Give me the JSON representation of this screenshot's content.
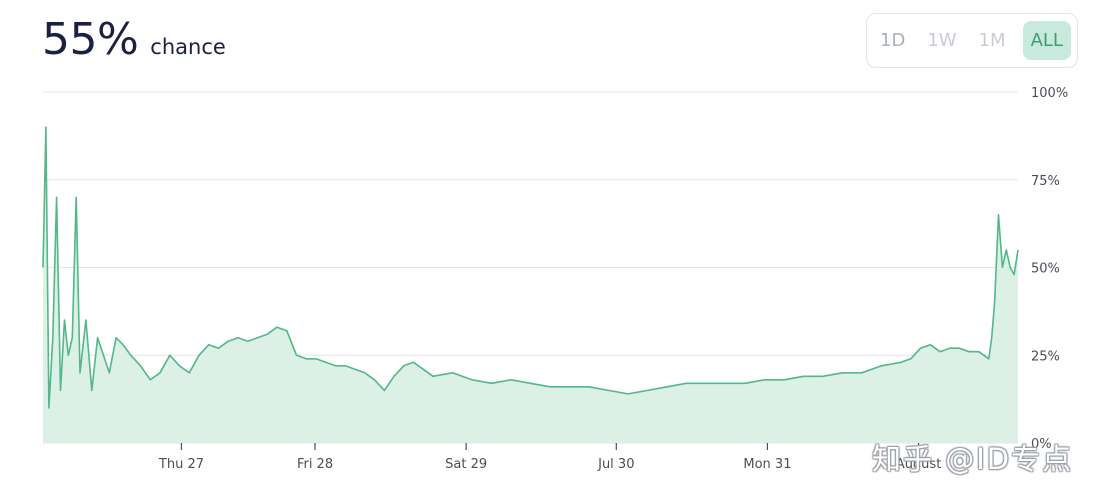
{
  "header": {
    "percent": "55%",
    "chance_label": "chance"
  },
  "range_buttons": [
    {
      "label": "1D",
      "active": false
    },
    {
      "label": "1W",
      "active": false
    },
    {
      "label": "1M",
      "active": false
    },
    {
      "label": "ALL",
      "active": true
    }
  ],
  "watermark": "知乎 @ID专点",
  "colors": {
    "line": "#52b888",
    "fill": "#dcf0e5",
    "accent": "#3f9b78",
    "active_bg": "#c8eadd",
    "grid": "#e3e6e9"
  },
  "chart_data": {
    "type": "area",
    "ylim": [
      0,
      100
    ],
    "y_ticks": [
      {
        "v": 100,
        "label": "100%"
      },
      {
        "v": 75,
        "label": "75%"
      },
      {
        "v": 50,
        "label": "50%"
      },
      {
        "v": 25,
        "label": "25%"
      },
      {
        "v": 0,
        "label": "0%"
      }
    ],
    "x_ticks": [
      {
        "t": 0.142,
        "label": "Thu 27"
      },
      {
        "t": 0.279,
        "label": "Fri 28"
      },
      {
        "t": 0.434,
        "label": "Sat 29"
      },
      {
        "t": 0.588,
        "label": "Jul 30"
      },
      {
        "t": 0.743,
        "label": "Mon 31"
      },
      {
        "t": 0.898,
        "label": "August"
      }
    ],
    "x": [
      0,
      0.003,
      0.006,
      0.01,
      0.014,
      0.018,
      0.022,
      0.026,
      0.03,
      0.034,
      0.038,
      0.044,
      0.05,
      0.056,
      0.062,
      0.068,
      0.075,
      0.082,
      0.09,
      0.1,
      0.11,
      0.12,
      0.13,
      0.14,
      0.15,
      0.16,
      0.17,
      0.18,
      0.19,
      0.2,
      0.21,
      0.22,
      0.23,
      0.24,
      0.25,
      0.26,
      0.27,
      0.28,
      0.29,
      0.3,
      0.31,
      0.32,
      0.33,
      0.34,
      0.35,
      0.36,
      0.37,
      0.38,
      0.39,
      0.4,
      0.42,
      0.44,
      0.46,
      0.48,
      0.5,
      0.52,
      0.54,
      0.56,
      0.58,
      0.6,
      0.62,
      0.64,
      0.66,
      0.68,
      0.7,
      0.72,
      0.74,
      0.76,
      0.78,
      0.8,
      0.82,
      0.84,
      0.86,
      0.88,
      0.89,
      0.9,
      0.91,
      0.92,
      0.93,
      0.94,
      0.95,
      0.96,
      0.965,
      0.97,
      0.973,
      0.976,
      0.98,
      0.984,
      0.988,
      0.992,
      0.996,
      1.0
    ],
    "values": [
      50,
      90,
      10,
      30,
      70,
      15,
      35,
      25,
      30,
      70,
      20,
      35,
      15,
      30,
      25,
      20,
      30,
      28,
      25,
      22,
      18,
      20,
      25,
      22,
      20,
      25,
      28,
      27,
      29,
      30,
      29,
      30,
      31,
      33,
      32,
      25,
      24,
      24,
      23,
      22,
      22,
      21,
      20,
      18,
      15,
      19,
      22,
      23,
      21,
      19,
      20,
      18,
      17,
      18,
      17,
      16,
      16,
      16,
      15,
      14,
      15,
      16,
      17,
      17,
      17,
      17,
      18,
      18,
      19,
      19,
      20,
      20,
      22,
      23,
      24,
      27,
      28,
      26,
      27,
      27,
      26,
      26,
      25,
      24,
      30,
      40,
      65,
      50,
      55,
      50,
      48,
      55
    ]
  }
}
